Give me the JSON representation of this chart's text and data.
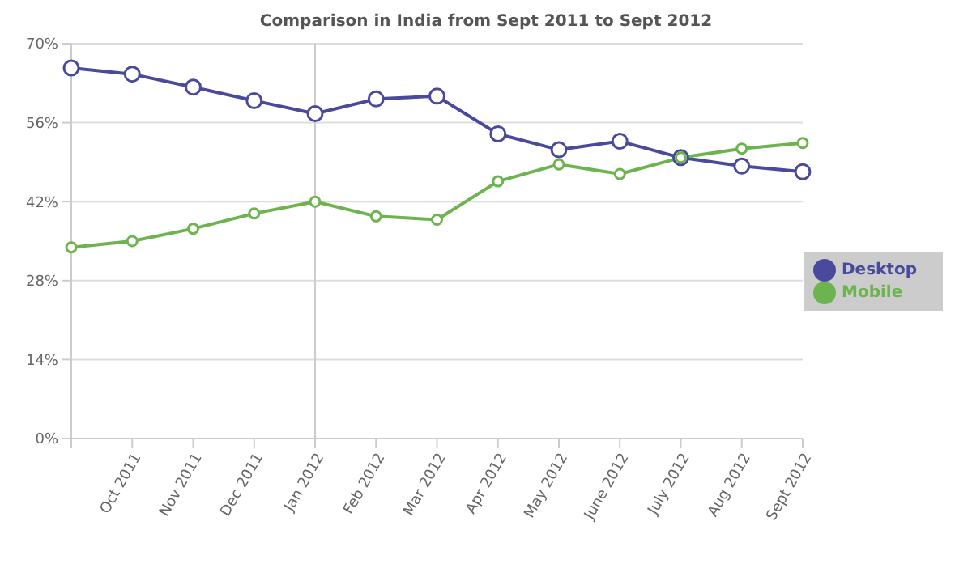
{
  "chart_data": {
    "type": "line",
    "subtitle": "Comparison in India from Sept 2011 to Sept 2012",
    "categories": [
      null,
      "Oct 2011",
      "Nov 2011",
      "Dec 2011",
      "Jan 2012",
      "Feb 2012",
      "Mar 2012",
      "Apr 2012",
      "May 2012",
      "June 2012",
      "July 2012",
      "Aug 2012",
      "Sept 2012"
    ],
    "series": [
      {
        "name": "Desktop",
        "color": "#4a4a9c",
        "values": [
          65.7,
          64.6,
          62.3,
          59.9,
          57.6,
          60.2,
          60.7,
          54.0,
          51.2,
          52.7,
          49.8,
          48.3,
          47.3
        ]
      },
      {
        "name": "Mobile",
        "color": "#6db34f",
        "values": [
          33.9,
          35.0,
          37.2,
          39.9,
          42.0,
          39.4,
          38.8,
          45.6,
          48.6,
          46.9,
          49.8,
          51.4,
          52.4
        ]
      }
    ],
    "ylim": [
      0,
      70
    ],
    "yticks": [
      {
        "value": 0,
        "label": "0%"
      },
      {
        "value": 14,
        "label": "14%"
      },
      {
        "value": 28,
        "label": "28%"
      },
      {
        "value": 42,
        "label": "42%"
      },
      {
        "value": 56,
        "label": "56%"
      },
      {
        "value": 70,
        "label": "70%"
      }
    ],
    "ref_lines": [
      {
        "axis": "x",
        "value": "Jan 2012",
        "color": "#cccccc"
      }
    ],
    "grid": "y",
    "legend": "right",
    "marker": "circle",
    "line_style": "solid"
  }
}
